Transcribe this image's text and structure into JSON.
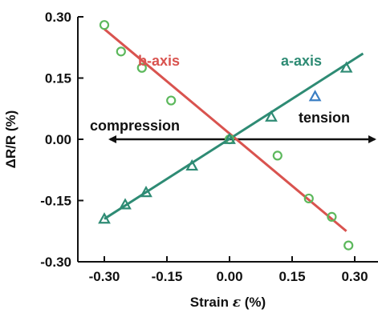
{
  "chart_data": {
    "type": "scatter",
    "xlabel_prefix": "Strain ",
    "xlabel_symbol": "ε",
    "xlabel_suffix": " (%)",
    "ylabel": "ΔR/R (%)",
    "xlim": [
      -0.33,
      0.32
    ],
    "ylim": [
      -0.3,
      0.3
    ],
    "xticks": [
      -0.3,
      -0.15,
      0.0,
      0.15,
      0.3
    ],
    "xtick_labels": [
      "-0.30",
      "-0.15",
      "0.00",
      "0.15",
      "0.30"
    ],
    "yticks": [
      0.3,
      0.15,
      0.0,
      -0.15,
      -0.3
    ],
    "ytick_labels": [
      "0.30",
      "0.15",
      "0.00",
      "-0.15",
      "-0.30"
    ],
    "grid": false,
    "series": [
      {
        "name": "b-axis",
        "color": "#d9534f",
        "marker": "circle",
        "marker_color": "#5cb85c",
        "points": [
          {
            "x": -0.3,
            "y": 0.28
          },
          {
            "x": -0.26,
            "y": 0.215
          },
          {
            "x": -0.21,
            "y": 0.175
          },
          {
            "x": -0.14,
            "y": 0.095
          },
          {
            "x": 0.0,
            "y": 0.0
          },
          {
            "x": 0.115,
            "y": -0.04
          },
          {
            "x": 0.19,
            "y": -0.145
          },
          {
            "x": 0.245,
            "y": -0.19
          },
          {
            "x": 0.285,
            "y": -0.26
          }
        ],
        "fit": [
          [
            -0.3,
            0.27
          ],
          [
            0.28,
            -0.225
          ]
        ]
      },
      {
        "name": "a-axis",
        "color": "#2e8b74",
        "marker": "triangle",
        "marker_color": "#2e8b74",
        "points": [
          {
            "x": -0.3,
            "y": -0.195
          },
          {
            "x": -0.25,
            "y": -0.16
          },
          {
            "x": -0.2,
            "y": -0.13
          },
          {
            "x": -0.09,
            "y": -0.065
          },
          {
            "x": 0.0,
            "y": 0.0
          },
          {
            "x": 0.1,
            "y": 0.055
          },
          {
            "x": 0.205,
            "y": 0.105
          },
          {
            "x": 0.28,
            "y": 0.175
          }
        ],
        "special_marker_color": {
          "index": 6,
          "color": "#3b7fc4"
        },
        "fit": [
          [
            -0.3,
            -0.195
          ],
          [
            0.32,
            0.21
          ]
        ]
      }
    ],
    "annotations": [
      {
        "text": "b-axis",
        "color": "#d9534f"
      },
      {
        "text": "a-axis",
        "color": "#2e8b74"
      },
      {
        "text": "compression",
        "color": "#111111"
      },
      {
        "text": "tension",
        "color": "#111111"
      }
    ]
  }
}
